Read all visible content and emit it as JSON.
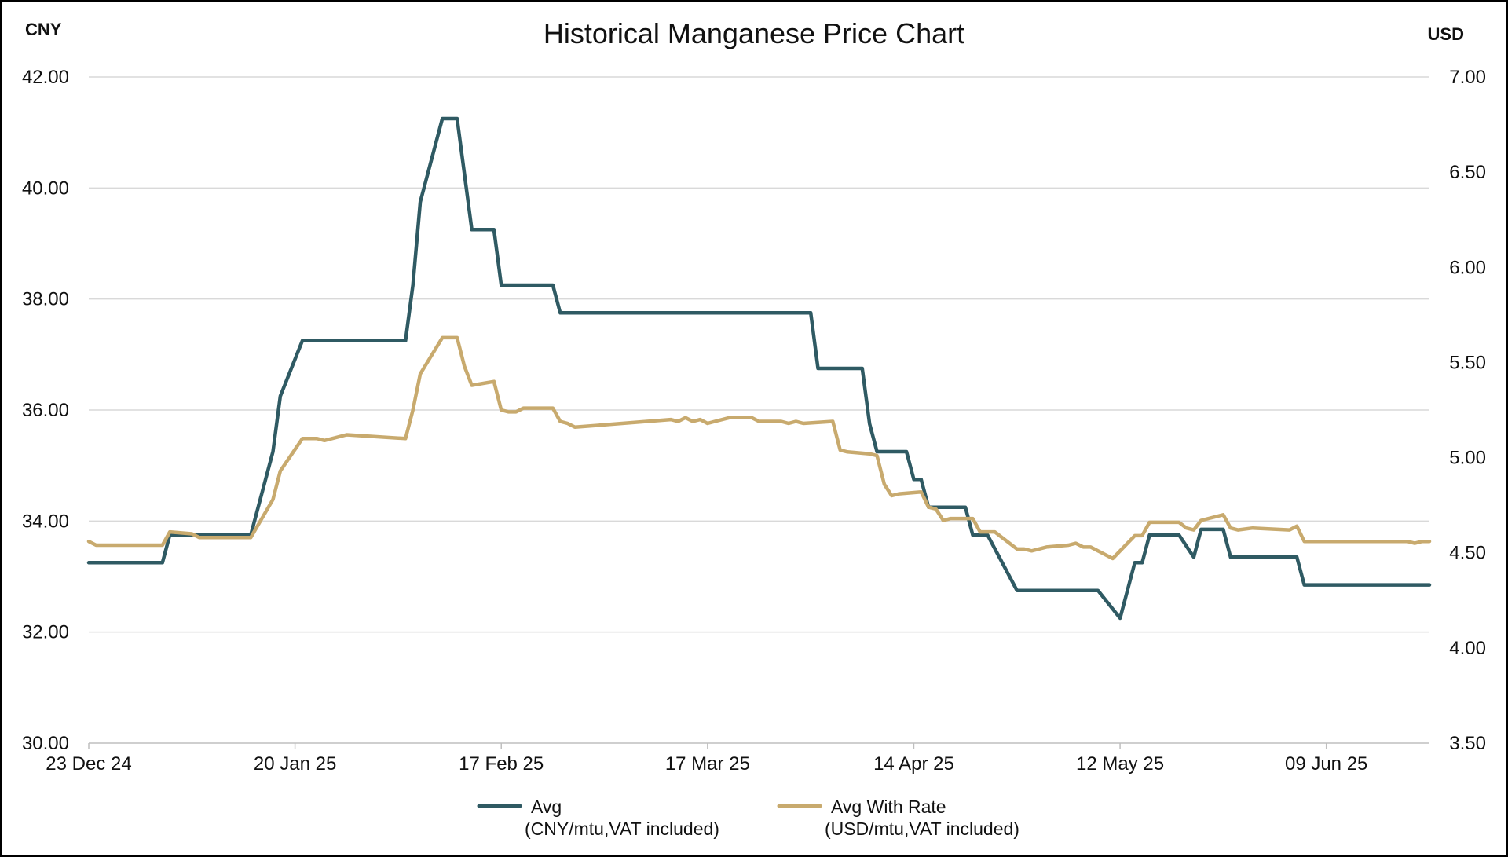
{
  "chart_data": {
    "type": "line",
    "title": "Historical Manganese Price Chart",
    "left_axis": {
      "unit_label": "CNY",
      "ylim": [
        30,
        42
      ],
      "ticks": [
        "30.00",
        "32.00",
        "34.00",
        "36.00",
        "38.00",
        "40.00",
        "42.00"
      ]
    },
    "right_axis": {
      "unit_label": "USD",
      "ylim": [
        3.5,
        7.0
      ],
      "ticks": [
        "3.50",
        "4.00",
        "4.50",
        "5.00",
        "5.50",
        "6.00",
        "6.50",
        "7.00"
      ]
    },
    "x_tick_labels": [
      "23 Dec 24",
      "20 Jan 25",
      "17 Feb 25",
      "17 Mar 25",
      "14 Apr 25",
      "12 May 25",
      "09 Jun 25"
    ],
    "xlim": [
      "2024-12-23",
      "2025-06-23"
    ],
    "grid": true,
    "legend_position": "bottom",
    "series": [
      {
        "name": "Avg",
        "unit": "(CNY/mtu,VAT included)",
        "axis": "left",
        "color": "#2f5a63",
        "points": [
          [
            "2024-12-23",
            33.25
          ],
          [
            "2025-01-02",
            33.25
          ],
          [
            "2025-01-03",
            33.75
          ],
          [
            "2025-01-14",
            33.75
          ],
          [
            "2025-01-17",
            35.25
          ],
          [
            "2025-01-18",
            36.25
          ],
          [
            "2025-01-21",
            37.25
          ],
          [
            "2025-02-04",
            37.25
          ],
          [
            "2025-02-05",
            38.25
          ],
          [
            "2025-02-06",
            39.75
          ],
          [
            "2025-02-09",
            41.25
          ],
          [
            "2025-02-11",
            41.25
          ],
          [
            "2025-02-13",
            39.25
          ],
          [
            "2025-02-16",
            39.25
          ],
          [
            "2025-02-17",
            38.25
          ],
          [
            "2025-02-24",
            38.25
          ],
          [
            "2025-02-25",
            37.75
          ],
          [
            "2025-03-31",
            37.75
          ],
          [
            "2025-04-01",
            36.75
          ],
          [
            "2025-04-07",
            36.75
          ],
          [
            "2025-04-08",
            35.75
          ],
          [
            "2025-04-09",
            35.25
          ],
          [
            "2025-04-13",
            35.25
          ],
          [
            "2025-04-14",
            34.75
          ],
          [
            "2025-04-15",
            34.75
          ],
          [
            "2025-04-16",
            34.25
          ],
          [
            "2025-04-21",
            34.25
          ],
          [
            "2025-04-22",
            33.75
          ],
          [
            "2025-04-24",
            33.75
          ],
          [
            "2025-04-28",
            32.75
          ],
          [
            "2025-05-09",
            32.75
          ],
          [
            "2025-05-12",
            32.25
          ],
          [
            "2025-05-14",
            33.25
          ],
          [
            "2025-05-15",
            33.25
          ],
          [
            "2025-05-16",
            33.75
          ],
          [
            "2025-05-20",
            33.75
          ],
          [
            "2025-05-22",
            33.35
          ],
          [
            "2025-05-23",
            33.85
          ],
          [
            "2025-05-26",
            33.85
          ],
          [
            "2025-05-27",
            33.35
          ],
          [
            "2025-06-05",
            33.35
          ],
          [
            "2025-06-06",
            32.85
          ],
          [
            "2025-06-23",
            32.85
          ]
        ]
      },
      {
        "name": "Avg With Rate",
        "unit": "(USD/mtu,VAT included)",
        "axis": "right",
        "color": "#c8aa6e",
        "points": [
          [
            "2024-12-23",
            4.56
          ],
          [
            "2024-12-24",
            4.54
          ],
          [
            "2025-01-02",
            4.54
          ],
          [
            "2025-01-03",
            4.61
          ],
          [
            "2025-01-06",
            4.6
          ],
          [
            "2025-01-07",
            4.58
          ],
          [
            "2025-01-14",
            4.58
          ],
          [
            "2025-01-17",
            4.78
          ],
          [
            "2025-01-18",
            4.93
          ],
          [
            "2025-01-21",
            5.1
          ],
          [
            "2025-01-23",
            5.1
          ],
          [
            "2025-01-24",
            5.09
          ],
          [
            "2025-01-27",
            5.12
          ],
          [
            "2025-02-04",
            5.1
          ],
          [
            "2025-02-05",
            5.25
          ],
          [
            "2025-02-06",
            5.44
          ],
          [
            "2025-02-09",
            5.63
          ],
          [
            "2025-02-11",
            5.63
          ],
          [
            "2025-02-12",
            5.48
          ],
          [
            "2025-02-13",
            5.38
          ],
          [
            "2025-02-16",
            5.4
          ],
          [
            "2025-02-17",
            5.25
          ],
          [
            "2025-02-18",
            5.24
          ],
          [
            "2025-02-19",
            5.24
          ],
          [
            "2025-02-20",
            5.26
          ],
          [
            "2025-02-24",
            5.26
          ],
          [
            "2025-02-25",
            5.19
          ],
          [
            "2025-02-26",
            5.18
          ],
          [
            "2025-02-27",
            5.16
          ],
          [
            "2025-03-12",
            5.2
          ],
          [
            "2025-03-13",
            5.19
          ],
          [
            "2025-03-14",
            5.21
          ],
          [
            "2025-03-15",
            5.19
          ],
          [
            "2025-03-16",
            5.2
          ],
          [
            "2025-03-17",
            5.18
          ],
          [
            "2025-03-18",
            5.19
          ],
          [
            "2025-03-20",
            5.21
          ],
          [
            "2025-03-23",
            5.21
          ],
          [
            "2025-03-24",
            5.19
          ],
          [
            "2025-03-27",
            5.19
          ],
          [
            "2025-03-28",
            5.18
          ],
          [
            "2025-03-29",
            5.19
          ],
          [
            "2025-03-30",
            5.18
          ],
          [
            "2025-04-03",
            5.19
          ],
          [
            "2025-04-04",
            5.04
          ],
          [
            "2025-04-05",
            5.03
          ],
          [
            "2025-04-08",
            5.02
          ],
          [
            "2025-04-09",
            5.01
          ],
          [
            "2025-04-10",
            4.86
          ],
          [
            "2025-04-11",
            4.8
          ],
          [
            "2025-04-12",
            4.81
          ],
          [
            "2025-04-15",
            4.82
          ],
          [
            "2025-04-16",
            4.74
          ],
          [
            "2025-04-17",
            4.73
          ],
          [
            "2025-04-18",
            4.67
          ],
          [
            "2025-04-19",
            4.68
          ],
          [
            "2025-04-22",
            4.68
          ],
          [
            "2025-04-23",
            4.61
          ],
          [
            "2025-04-25",
            4.61
          ],
          [
            "2025-04-28",
            4.52
          ],
          [
            "2025-04-29",
            4.52
          ],
          [
            "2025-04-30",
            4.51
          ],
          [
            "2025-05-02",
            4.53
          ],
          [
            "2025-05-05",
            4.54
          ],
          [
            "2025-05-06",
            4.55
          ],
          [
            "2025-05-07",
            4.53
          ],
          [
            "2025-05-08",
            4.53
          ],
          [
            "2025-05-11",
            4.47
          ],
          [
            "2025-05-14",
            4.59
          ],
          [
            "2025-05-15",
            4.59
          ],
          [
            "2025-05-16",
            4.66
          ],
          [
            "2025-05-20",
            4.66
          ],
          [
            "2025-05-21",
            4.63
          ],
          [
            "2025-05-22",
            4.62
          ],
          [
            "2025-05-23",
            4.67
          ],
          [
            "2025-05-26",
            4.7
          ],
          [
            "2025-05-27",
            4.63
          ],
          [
            "2025-05-28",
            4.62
          ],
          [
            "2025-05-30",
            4.63
          ],
          [
            "2025-06-04",
            4.62
          ],
          [
            "2025-06-05",
            4.64
          ],
          [
            "2025-06-06",
            4.56
          ],
          [
            "2025-06-20",
            4.56
          ],
          [
            "2025-06-21",
            4.55
          ],
          [
            "2025-06-22",
            4.56
          ],
          [
            "2025-06-23",
            4.56
          ]
        ]
      }
    ]
  }
}
